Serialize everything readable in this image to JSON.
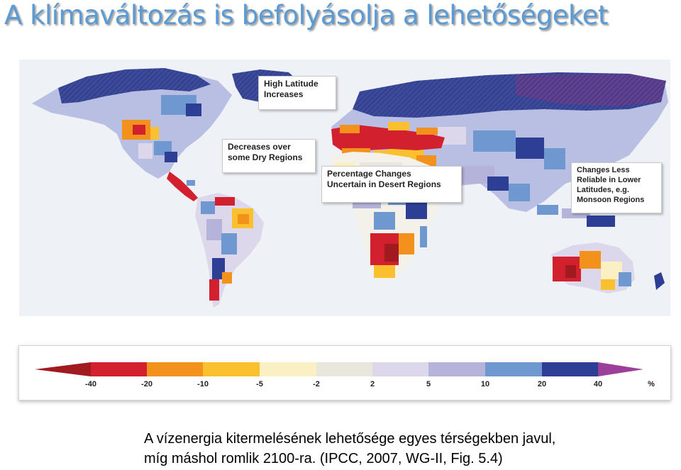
{
  "title": "A klímaváltozás is befolyásolja a lehetőségeket",
  "map": {
    "callouts": {
      "high_latitude": "High Latitude\nIncreases",
      "dry_regions": "Decreases over\nsome Dry Regions",
      "desert": "Percentage Changes\nUncertain in Desert Regions",
      "monsoon": "Changes Less\nReliable in Lower\nLatitudes, e.g.\nMonsoon Regions"
    }
  },
  "legend": {
    "ticks": [
      "-40",
      "-20",
      "-10",
      "-5",
      "-2",
      "2",
      "5",
      "10",
      "20",
      "40",
      "%"
    ],
    "colors": {
      "dark_red": "#a01a1f",
      "red": "#d3202e",
      "orange": "#f2921d",
      "yellow": "#fbc02d",
      "cream": "#fbefc4",
      "gray": "#e8e6dd",
      "lavender": "#dcd7ea",
      "light_purple": "#b5b3da",
      "light_blue": "#6f97d0",
      "blue": "#2c3f95",
      "magenta": "#9b3f9a"
    }
  },
  "caption": {
    "line1": "A vízenergia kitermelésének lehetősége egyes térségekben javul,",
    "line2": "míg máshol romlik 2100-ra. (IPCC, 2007, WG-II, Fig. 5.4)"
  }
}
